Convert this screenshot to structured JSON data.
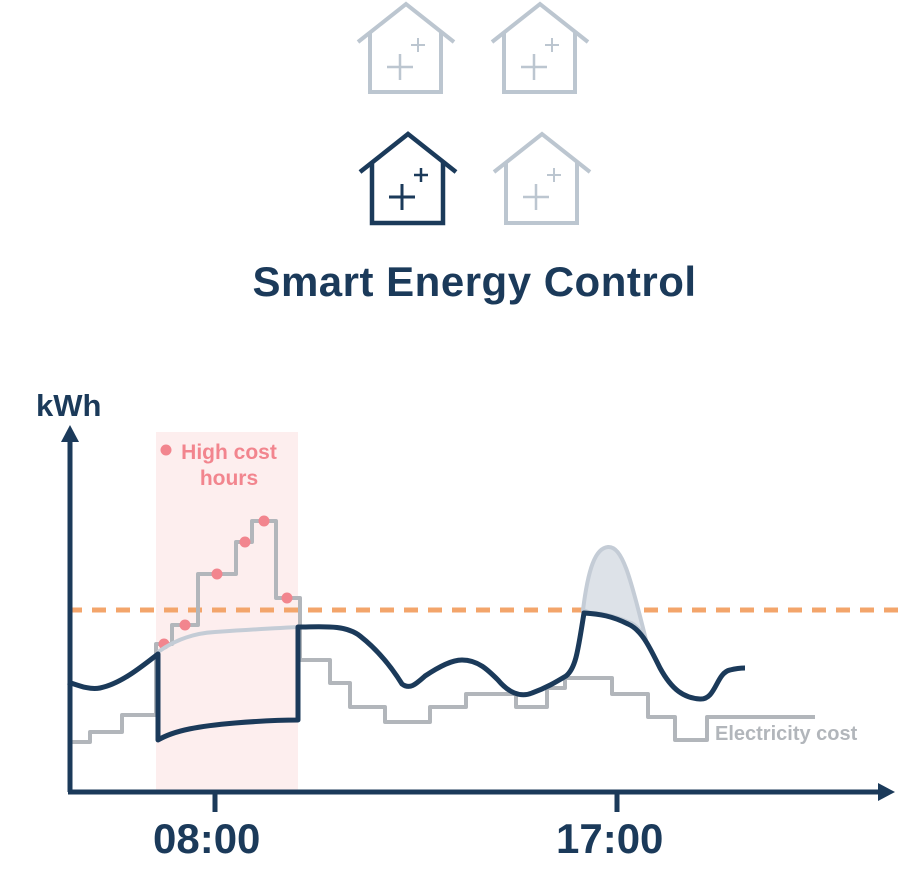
{
  "header": {
    "title": "Smart Energy Control",
    "houses": [
      {
        "name": "house-icon",
        "state": "inactive"
      },
      {
        "name": "house-icon",
        "state": "inactive"
      },
      {
        "name": "house-icon",
        "state": "active"
      },
      {
        "name": "house-icon",
        "state": "inactive"
      }
    ]
  },
  "chart": {
    "ylabel": "kWh",
    "xticks": [
      "08:00",
      "17:00"
    ],
    "high_cost_label": "High cost hours",
    "electricity_cost_label": "Electricity cost"
  },
  "colors": {
    "navy": "#1b3a5a",
    "inactive_gray": "#bcc6d0",
    "cost_gray": "#b2b6bb",
    "threshold_orange": "#f3a56b",
    "high_cost_pink": "#f2858e",
    "high_cost_band": "#fdeeee"
  }
}
